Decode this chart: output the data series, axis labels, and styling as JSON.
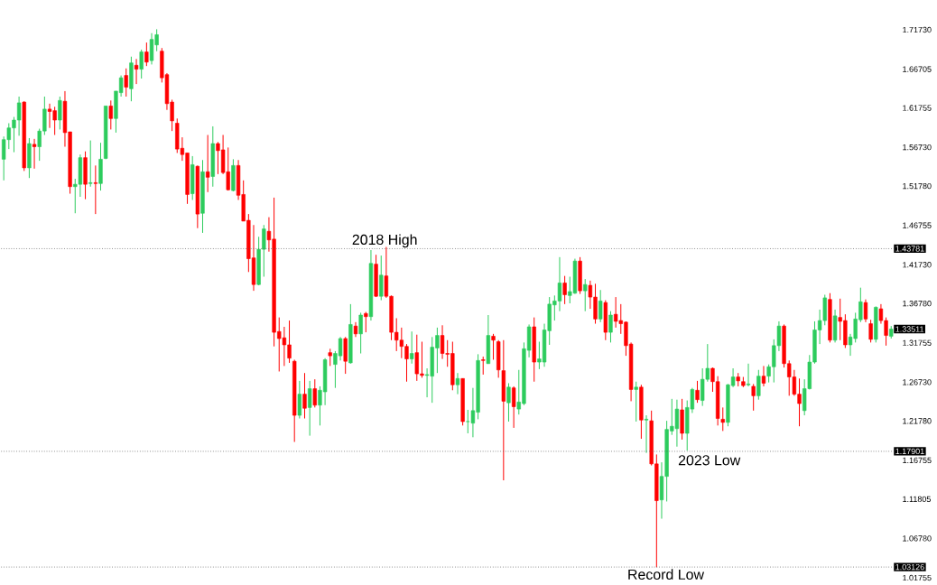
{
  "chart_data": {
    "type": "candlestick",
    "categories": [
      null,
      null,
      null,
      null,
      null,
      null,
      null,
      null,
      null,
      null,
      null,
      null,
      null,
      null,
      null,
      null,
      null,
      null,
      null,
      null,
      null,
      null,
      null,
      null,
      null,
      null,
      null,
      null,
      null,
      null,
      null,
      null,
      null,
      null,
      null,
      null,
      null,
      null,
      null,
      null,
      null,
      null,
      null,
      null,
      null,
      null,
      null,
      null,
      null,
      null,
      null,
      null,
      null,
      null,
      null,
      null,
      null,
      null,
      null,
      null,
      null,
      null,
      null,
      null,
      null,
      null,
      null,
      null,
      null,
      null,
      null,
      null,
      null,
      null,
      null,
      null,
      null,
      null,
      null,
      null,
      null,
      null,
      null,
      null,
      null,
      null,
      null,
      null,
      null,
      null,
      null,
      null,
      null,
      null,
      null,
      null,
      null,
      null,
      null,
      null,
      null,
      null,
      null,
      null,
      null,
      null,
      null,
      null,
      null,
      null,
      null,
      null,
      null,
      null,
      null,
      null,
      null,
      null,
      null,
      null,
      null,
      null,
      null,
      null,
      null,
      null,
      null,
      null,
      null,
      null,
      null,
      null,
      null,
      null,
      null,
      null,
      null,
      null,
      null,
      null,
      null,
      null,
      null,
      null,
      null,
      null,
      null,
      null,
      null,
      null,
      null,
      null,
      null,
      null,
      null,
      null,
      null,
      null,
      null,
      null,
      null,
      null,
      null,
      null,
      null,
      null,
      null,
      null,
      null,
      null,
      null,
      null,
      null,
      null,
      null
    ],
    "ohlc": [
      [
        1.552,
        1.581,
        1.525,
        1.577
      ],
      [
        1.577,
        1.598,
        1.565,
        1.592
      ],
      [
        1.592,
        1.606,
        1.561,
        1.602
      ],
      [
        1.602,
        1.632,
        1.582,
        1.624
      ],
      [
        1.625,
        1.626,
        1.537,
        1.541
      ],
      [
        1.541,
        1.579,
        1.528,
        1.572
      ],
      [
        1.571,
        1.578,
        1.54,
        1.568
      ],
      [
        1.568,
        1.591,
        1.55,
        1.588
      ],
      [
        1.588,
        1.632,
        1.583,
        1.616
      ],
      [
        1.616,
        1.623,
        1.592,
        1.613
      ],
      [
        1.614,
        1.619,
        1.583,
        1.602
      ],
      [
        1.602,
        1.632,
        1.59,
        1.627
      ],
      [
        1.626,
        1.639,
        1.568,
        1.586
      ],
      [
        1.587,
        1.587,
        1.508,
        1.517
      ],
      [
        1.517,
        1.527,
        1.483,
        1.52
      ],
      [
        1.52,
        1.558,
        1.504,
        1.554
      ],
      [
        1.554,
        1.562,
        1.501,
        1.52
      ],
      [
        1.521,
        1.576,
        1.517,
        1.522
      ],
      [
        1.522,
        1.544,
        1.482,
        1.521
      ],
      [
        1.521,
        1.573,
        1.512,
        1.552
      ],
      [
        1.553,
        1.62,
        1.552,
        1.62
      ],
      [
        1.62,
        1.627,
        1.59,
        1.604
      ],
      [
        1.604,
        1.639,
        1.586,
        1.639
      ],
      [
        1.637,
        1.659,
        1.632,
        1.656
      ],
      [
        1.659,
        1.668,
        1.632,
        1.644
      ],
      [
        1.642,
        1.683,
        1.626,
        1.675
      ],
      [
        1.672,
        1.68,
        1.648,
        1.667
      ],
      [
        1.667,
        1.692,
        1.655,
        1.689
      ],
      [
        1.689,
        1.701,
        1.671,
        1.676
      ],
      [
        1.678,
        1.713,
        1.673,
        1.705
      ],
      [
        1.698,
        1.718,
        1.69,
        1.711
      ],
      [
        1.69,
        1.694,
        1.65,
        1.656
      ],
      [
        1.66,
        1.662,
        1.615,
        1.623
      ],
      [
        1.625,
        1.628,
        1.588,
        1.601
      ],
      [
        1.598,
        1.604,
        1.56,
        1.565
      ],
      [
        1.566,
        1.58,
        1.55,
        1.558
      ],
      [
        1.56,
        1.56,
        1.495,
        1.507
      ],
      [
        1.508,
        1.556,
        1.5,
        1.545
      ],
      [
        1.543,
        1.544,
        1.464,
        1.482
      ],
      [
        1.483,
        1.551,
        1.458,
        1.536
      ],
      [
        1.536,
        1.583,
        1.51,
        1.529
      ],
      [
        1.53,
        1.594,
        1.517,
        1.572
      ],
      [
        1.572,
        1.574,
        1.533,
        1.563
      ],
      [
        1.564,
        1.583,
        1.533,
        1.535
      ],
      [
        1.536,
        1.567,
        1.512,
        1.513
      ],
      [
        1.512,
        1.552,
        1.511,
        1.544
      ],
      [
        1.544,
        1.551,
        1.5,
        1.506
      ],
      [
        1.507,
        1.525,
        1.473,
        1.473
      ],
      [
        1.474,
        1.482,
        1.408,
        1.425
      ],
      [
        1.426,
        1.468,
        1.384,
        1.392
      ],
      [
        1.392,
        1.453,
        1.391,
        1.437
      ],
      [
        1.437,
        1.468,
        1.402,
        1.463
      ],
      [
        1.46,
        1.478,
        1.434,
        1.449
      ],
      [
        1.45,
        1.503,
        1.313,
        1.331
      ],
      [
        1.332,
        1.35,
        1.281,
        1.323
      ],
      [
        1.324,
        1.338,
        1.288,
        1.315
      ],
      [
        1.315,
        1.346,
        1.292,
        1.298
      ],
      [
        1.294,
        1.296,
        1.191,
        1.225
      ],
      [
        1.225,
        1.269,
        1.221,
        1.252
      ],
      [
        1.252,
        1.279,
        1.221,
        1.234
      ],
      [
        1.235,
        1.269,
        1.199,
        1.259
      ],
      [
        1.259,
        1.271,
        1.235,
        1.238
      ],
      [
        1.238,
        1.262,
        1.212,
        1.257
      ],
      [
        1.255,
        1.298,
        1.238,
        1.296
      ],
      [
        1.305,
        1.31,
        1.288,
        1.301
      ],
      [
        1.29,
        1.307,
        1.26,
        1.304
      ],
      [
        1.301,
        1.325,
        1.295,
        1.323
      ],
      [
        1.323,
        1.325,
        1.278,
        1.294
      ],
      [
        1.292,
        1.367,
        1.291,
        1.341
      ],
      [
        1.339,
        1.344,
        1.325,
        1.329
      ],
      [
        1.329,
        1.356,
        1.304,
        1.353
      ],
      [
        1.355,
        1.357,
        1.331,
        1.351
      ],
      [
        1.351,
        1.436,
        1.346,
        1.419
      ],
      [
        1.418,
        1.43,
        1.376,
        1.377
      ],
      [
        1.377,
        1.429,
        1.372,
        1.404
      ],
      [
        1.403,
        1.44,
        1.375,
        1.377
      ],
      [
        1.377,
        1.378,
        1.321,
        1.331
      ],
      [
        1.331,
        1.349,
        1.307,
        1.321
      ],
      [
        1.321,
        1.337,
        1.298,
        1.313
      ],
      [
        1.313,
        1.316,
        1.268,
        1.297
      ],
      [
        1.297,
        1.332,
        1.291,
        1.304
      ],
      [
        1.305,
        1.328,
        1.269,
        1.278
      ],
      [
        1.278,
        1.319,
        1.273,
        1.276
      ],
      [
        1.276,
        1.285,
        1.248,
        1.277
      ],
      [
        1.275,
        1.325,
        1.241,
        1.312
      ],
      [
        1.311,
        1.337,
        1.279,
        1.327
      ],
      [
        1.327,
        1.34,
        1.297,
        1.304
      ],
      [
        1.304,
        1.321,
        1.287,
        1.303
      ],
      [
        1.304,
        1.319,
        1.257,
        1.264
      ],
      [
        1.264,
        1.279,
        1.252,
        1.272
      ],
      [
        1.272,
        1.272,
        1.212,
        1.217
      ],
      [
        1.217,
        1.232,
        1.202,
        1.217
      ],
      [
        1.215,
        1.26,
        1.197,
        1.231
      ],
      [
        1.229,
        1.303,
        1.22,
        1.295
      ],
      [
        1.296,
        1.3,
        1.277,
        1.295
      ],
      [
        1.291,
        1.353,
        1.291,
        1.327
      ],
      [
        1.326,
        1.329,
        1.296,
        1.321
      ],
      [
        1.319,
        1.321,
        1.273,
        1.283
      ],
      [
        1.282,
        1.321,
        1.142,
        1.243
      ],
      [
        1.241,
        1.266,
        1.217,
        1.261
      ],
      [
        1.26,
        1.262,
        1.209,
        1.236
      ],
      [
        1.233,
        1.283,
        1.226,
        1.242
      ],
      [
        1.24,
        1.318,
        1.238,
        1.31
      ],
      [
        1.308,
        1.341,
        1.299,
        1.338
      ],
      [
        1.338,
        1.35,
        1.268,
        1.293
      ],
      [
        1.293,
        1.319,
        1.284,
        1.297
      ],
      [
        1.293,
        1.342,
        1.287,
        1.334
      ],
      [
        1.333,
        1.376,
        1.315,
        1.367
      ],
      [
        1.366,
        1.378,
        1.346,
        1.371
      ],
      [
        1.371,
        1.427,
        1.358,
        1.394
      ],
      [
        1.394,
        1.403,
        1.367,
        1.379
      ],
      [
        1.378,
        1.402,
        1.368,
        1.383
      ],
      [
        1.381,
        1.425,
        1.38,
        1.422
      ],
      [
        1.422,
        1.427,
        1.38,
        1.384
      ],
      [
        1.384,
        1.399,
        1.358,
        1.392
      ],
      [
        1.391,
        1.397,
        1.361,
        1.376
      ],
      [
        1.376,
        1.393,
        1.342,
        1.348
      ],
      [
        1.348,
        1.385,
        1.344,
        1.371
      ],
      [
        1.369,
        1.372,
        1.321,
        1.331
      ],
      [
        1.331,
        1.358,
        1.318,
        1.353
      ],
      [
        1.354,
        1.376,
        1.337,
        1.345
      ],
      [
        1.346,
        1.367,
        1.329,
        1.342
      ],
      [
        1.344,
        1.345,
        1.301,
        1.314
      ],
      [
        1.316,
        1.318,
        1.243,
        1.258
      ],
      [
        1.258,
        1.268,
        1.217,
        1.261
      ],
      [
        1.261,
        1.264,
        1.195,
        1.219
      ],
      [
        1.219,
        1.225,
        1.177,
        1.22
      ],
      [
        1.218,
        1.231,
        1.161,
        1.163
      ],
      [
        1.163,
        1.175,
        1.031,
        1.116
      ],
      [
        1.117,
        1.165,
        1.093,
        1.147
      ],
      [
        1.147,
        1.218,
        1.115,
        1.207
      ],
      [
        1.205,
        1.246,
        1.2,
        1.211
      ],
      [
        1.208,
        1.245,
        1.185,
        1.233
      ],
      [
        1.232,
        1.246,
        1.194,
        1.202
      ],
      [
        1.202,
        1.244,
        1.18,
        1.235
      ],
      [
        1.233,
        1.26,
        1.228,
        1.258
      ],
      [
        1.257,
        1.269,
        1.241,
        1.245
      ],
      [
        1.244,
        1.285,
        1.237,
        1.271
      ],
      [
        1.271,
        1.316,
        1.268,
        1.285
      ],
      [
        1.285,
        1.286,
        1.255,
        1.268
      ],
      [
        1.268,
        1.275,
        1.212,
        1.221
      ],
      [
        1.22,
        1.235,
        1.205,
        1.216
      ],
      [
        1.216,
        1.265,
        1.211,
        1.264
      ],
      [
        1.263,
        1.285,
        1.261,
        1.274
      ],
      [
        1.274,
        1.279,
        1.262,
        1.269
      ],
      [
        1.268,
        1.274,
        1.261,
        1.263
      ],
      [
        1.264,
        1.291,
        1.262,
        1.265
      ],
      [
        1.262,
        1.265,
        1.231,
        1.25
      ],
      [
        1.25,
        1.283,
        1.245,
        1.275
      ],
      [
        1.275,
        1.288,
        1.262,
        1.266
      ],
      [
        1.275,
        1.29,
        1.267,
        1.287
      ],
      [
        1.287,
        1.322,
        1.267,
        1.314
      ],
      [
        1.314,
        1.345,
        1.307,
        1.339
      ],
      [
        1.339,
        1.341,
        1.286,
        1.291
      ],
      [
        1.291,
        1.295,
        1.25,
        1.274
      ],
      [
        1.274,
        1.283,
        1.25,
        1.252
      ],
      [
        1.252,
        1.272,
        1.211,
        1.24
      ],
      [
        1.231,
        1.271,
        1.225,
        1.259
      ],
      [
        1.259,
        1.302,
        1.258,
        1.293
      ],
      [
        1.293,
        1.345,
        1.291,
        1.334
      ],
      [
        1.334,
        1.36,
        1.316,
        1.346
      ],
      [
        1.346,
        1.379,
        1.34,
        1.375
      ],
      [
        1.373,
        1.381,
        1.318,
        1.321
      ],
      [
        1.321,
        1.36,
        1.318,
        1.352
      ],
      [
        1.35,
        1.374,
        1.321,
        1.345
      ],
      [
        1.346,
        1.354,
        1.311,
        1.315
      ],
      [
        1.315,
        1.329,
        1.301,
        1.325
      ],
      [
        1.323,
        1.356,
        1.318,
        1.348
      ],
      [
        1.347,
        1.388,
        1.344,
        1.37
      ],
      [
        1.369,
        1.373,
        1.344,
        1.348
      ],
      [
        1.342,
        1.347,
        1.318,
        1.322
      ],
      [
        1.322,
        1.364,
        1.318,
        1.363
      ],
      [
        1.361,
        1.367,
        1.342,
        1.346
      ],
      [
        1.346,
        1.35,
        1.314,
        1.327
      ],
      [
        1.326,
        1.339,
        1.323,
        1.33511
      ]
    ],
    "ylim": [
      1.01755,
      1.7173
    ],
    "yticks": [
      {
        "value": 1.7173,
        "label": "1.71730"
      },
      1.66705,
      1.61755,
      {
        "value": 1.5673,
        "label": "1.56730"
      },
      {
        "value": 1.5178,
        "label": "1.51780"
      },
      1.46755,
      {
        "value": 1.4173,
        "label": "1.41730"
      },
      {
        "value": 1.3678,
        "label": "1.36780"
      },
      1.31755,
      {
        "value": 1.2673,
        "label": "1.26730"
      },
      {
        "value": 1.2178,
        "label": "1.21780"
      },
      1.16755,
      1.11805,
      {
        "value": 1.0678,
        "label": "1.06780"
      },
      1.01755
    ],
    "tick_labels": "y",
    "ref_lines": [
      {
        "axis": "y",
        "value": 1.43781,
        "label": "1.43781",
        "color": "#555555",
        "line_style": "dotted"
      },
      {
        "axis": "y",
        "value": 1.17901,
        "label": "1.17901",
        "color": "#555555",
        "line_style": "dotted"
      },
      {
        "axis": "y",
        "value": 1.03126,
        "label": "1.03126",
        "color": "#555555",
        "line_style": "dotted"
      }
    ],
    "annotations": [
      {
        "text": "2018 High",
        "y": 1.43781
      },
      {
        "text": "2023 Low",
        "y": 1.17901
      },
      {
        "text": "Record Low",
        "y": 1.03126
      },
      "1.33511"
    ]
  }
}
